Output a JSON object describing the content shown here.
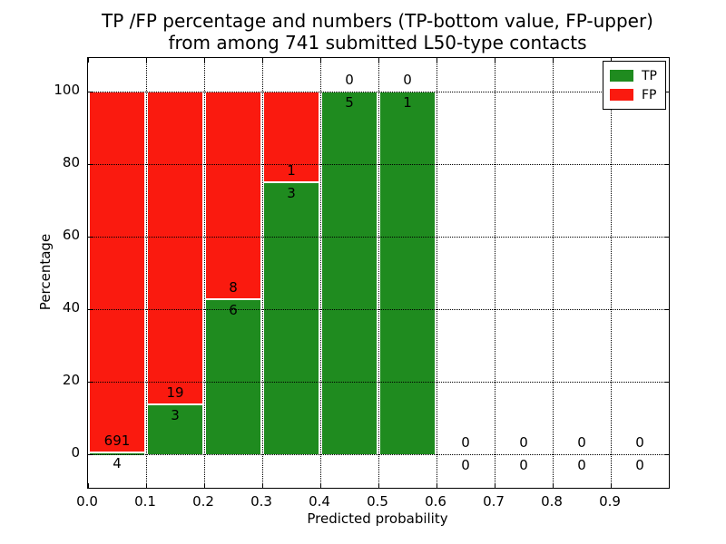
{
  "figure_title": {
    "line1": "TP /FP percentage and numbers (TP-bottom value, FP-upper)",
    "line2": "from among 741 submitted L50-type contacts"
  },
  "axes": {
    "x_label": "Predicted probability",
    "y_label": "Percentage",
    "x_tick_labels": [
      "0.0",
      "0.1",
      "0.2",
      "0.3",
      "0.4",
      "0.5",
      "0.6",
      "0.7",
      "0.8",
      "0.9"
    ],
    "y_tick_labels": [
      "0",
      "20",
      "40",
      "60",
      "80",
      "100"
    ]
  },
  "legend": {
    "items": [
      {
        "label": "TP",
        "color": "#1f8b1f"
      },
      {
        "label": "FP",
        "color": "#fa1a0f"
      }
    ]
  },
  "colors": {
    "tp": "#1f8b1f",
    "fp": "#fa1a0f",
    "background": "#ffffff",
    "text": "#000000",
    "axis": "#000000",
    "bar_edge": "#ffffff",
    "grid": "#000000"
  },
  "chart_data": {
    "type": "bar",
    "stacked": true,
    "title": "TP /FP percentage and numbers (TP-bottom value, FP-upper)\nfrom among 741 submitted L50-type contacts",
    "xlabel": "Predicted probability",
    "ylabel": "Percentage",
    "xlim": [
      0.0,
      1.0
    ],
    "ylim": [
      -9.25,
      109.25
    ],
    "x_ticks": [
      0.0,
      0.1,
      0.2,
      0.3,
      0.4,
      0.5,
      0.6,
      0.7,
      0.8,
      0.9
    ],
    "y_ticks": [
      0,
      20,
      40,
      60,
      80,
      100
    ],
    "bin_width": 0.1,
    "total_submitted": 741,
    "grid": {
      "style": "dotted",
      "color": "#000000",
      "over_bars": true
    },
    "legend_position": "upper right",
    "categories": [
      "0.0-0.1",
      "0.1-0.2",
      "0.2-0.3",
      "0.3-0.4",
      "0.4-0.5",
      "0.5-0.6",
      "0.6-0.7",
      "0.7-0.8",
      "0.8-0.9",
      "0.9-1.0"
    ],
    "series": [
      {
        "name": "TP",
        "color": "#1f8b1f",
        "counts": [
          4,
          3,
          6,
          3,
          5,
          1,
          0,
          0,
          0,
          0
        ],
        "pct": [
          0.58,
          13.64,
          42.86,
          75.0,
          100.0,
          100.0,
          0,
          0,
          0,
          0
        ]
      },
      {
        "name": "FP",
        "color": "#fa1a0f",
        "counts": [
          691,
          19,
          8,
          1,
          0,
          0,
          0,
          0,
          0,
          0
        ],
        "pct": [
          99.42,
          86.36,
          57.14,
          25.0,
          0.0,
          0.0,
          0,
          0,
          0,
          0
        ]
      }
    ]
  }
}
